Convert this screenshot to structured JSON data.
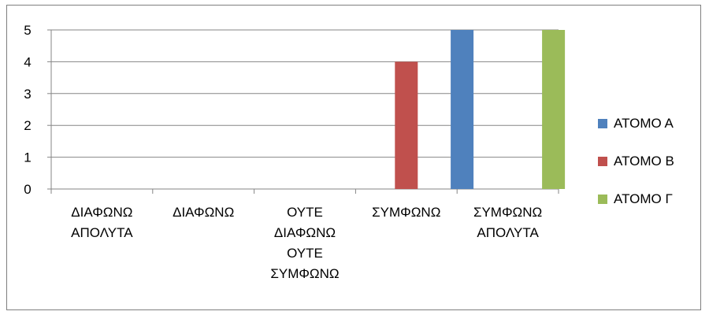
{
  "chart_data": {
    "type": "bar",
    "categories": [
      "ΔΙΑΦΩΝΩ\nΑΠΟΛΥΤΑ",
      "ΔΙΑΦΩΝΩ",
      "ΟΥΤΕ\nΔΙΑΦΩΝΩ\nΟΥΤΕ\nΣΥΜΦΩΝΩ",
      "ΣΥΜΦΩΝΩ",
      "ΣΥΜΦΩΝΩ\nΑΠΟΛΥΤΑ"
    ],
    "series": [
      {
        "name": "ΑΤΟΜΟ Α",
        "color": "#4f81bd",
        "values": [
          0,
          0,
          0,
          0,
          5
        ]
      },
      {
        "name": "ΑΤΟΜΟ Β",
        "color": "#c0504d",
        "values": [
          0,
          0,
          0,
          4,
          0
        ]
      },
      {
        "name": "ΑΤΟΜΟ Γ",
        "color": "#9bbb59",
        "values": [
          0,
          0,
          0,
          0,
          5
        ]
      }
    ],
    "yticks": [
      "0",
      "1",
      "2",
      "3",
      "4",
      "5"
    ],
    "ylim": [
      0,
      5
    ],
    "grid": true,
    "legend_position": "right",
    "title": "",
    "xlabel": "",
    "ylabel": ""
  }
}
